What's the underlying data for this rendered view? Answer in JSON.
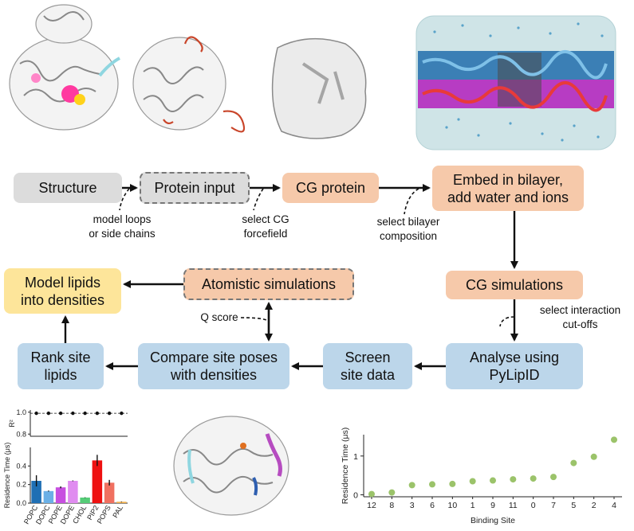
{
  "flow": {
    "structure": "Structure",
    "protein_input": "Protein input",
    "cg_protein": "CG protein",
    "embed_line1": "Embed in bilayer,",
    "embed_line2": "add water and ions",
    "cg_simulations": "CG simulations",
    "analyse_line1": "Analyse using",
    "analyse_line2": "PyLipID",
    "screen_line1": "Screen",
    "screen_line2": "site data",
    "compare_line1": "Compare site poses",
    "compare_line2": "with densities",
    "rank_line1": "Rank site",
    "rank_line2": "lipids",
    "model_line1": "Model lipids",
    "model_line2": "into densities",
    "atomistic": "Atomistic simulations"
  },
  "notes": {
    "loops_line1": "model loops",
    "loops_line2": "or side chains",
    "cg_ff_line1": "select CG",
    "cg_ff_line2": "forcefield",
    "bilayer_line1": "select bilayer",
    "bilayer_line2": "composition",
    "cutoff_line1": "select interaction",
    "cutoff_line2": "cut-offs",
    "qscore": "Q score"
  },
  "colors": {
    "grey_box": "#dcdcdc",
    "orange_box": "#f6c9aa",
    "blue_box": "#bcd6ea",
    "yellow_box": "#fde59a",
    "scatter_point": "#9bc36a"
  },
  "chart_data": [
    {
      "type": "bar",
      "categories": [
        "POPC",
        "DOPC",
        "POPE",
        "DOPE",
        "CHOL",
        "PIP2",
        "POPS",
        "PAL"
      ],
      "values": [
        0.24,
        0.13,
        0.17,
        0.24,
        0.06,
        0.46,
        0.22,
        0.015
      ],
      "errors": [
        0.06,
        0.005,
        0.01,
        0.004,
        0.003,
        0.06,
        0.03,
        0.003
      ],
      "colors": [
        "#1f6fb4",
        "#6bb0e6",
        "#c74fe0",
        "#e08cf0",
        "#55cc77",
        "#ee1111",
        "#f07060",
        "#f0b050"
      ],
      "ylabel": "Residence Time (μs)",
      "ylim": [
        0,
        0.6
      ],
      "yticks": [
        "0.0",
        "0.2",
        "0.4"
      ],
      "r2": {
        "ylabel": "R²",
        "values": [
          0.99,
          0.99,
          0.99,
          0.99,
          0.99,
          0.99,
          0.99,
          0.99
        ],
        "ylim": [
          0.78,
          1.02
        ],
        "yticks": [
          "0.8",
          "1.0"
        ]
      }
    },
    {
      "type": "scatter",
      "categories": [
        "12",
        "8",
        "3",
        "6",
        "10",
        "1",
        "9",
        "11",
        "0",
        "7",
        "5",
        "2",
        "4"
      ],
      "values": [
        0.02,
        0.06,
        0.25,
        0.27,
        0.28,
        0.35,
        0.37,
        0.4,
        0.42,
        0.46,
        0.82,
        0.98,
        1.42
      ],
      "xlabel": "Binding Site",
      "ylabel": "Residence Time (μs)",
      "ylim": [
        -0.05,
        1.55
      ],
      "yticks": [
        "0",
        "1"
      ]
    }
  ]
}
